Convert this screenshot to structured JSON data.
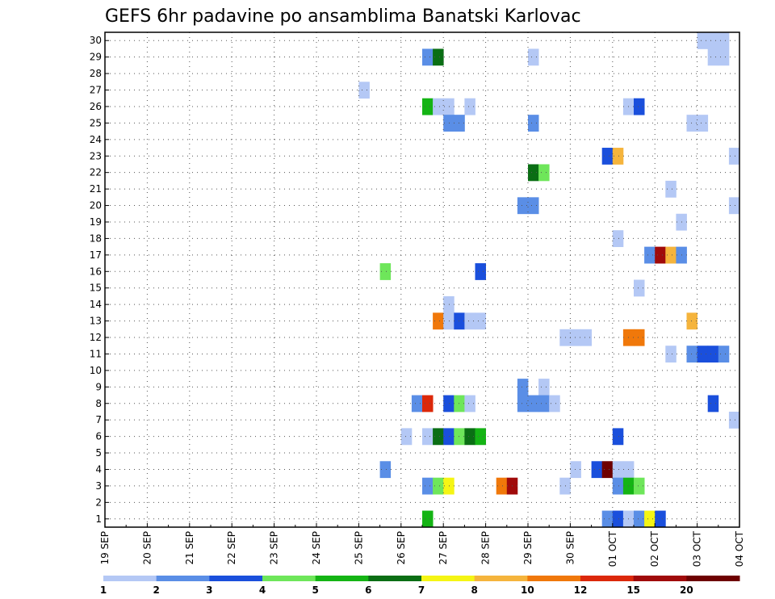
{
  "chart_data": {
    "type": "heatmap",
    "title": "GEFS 6hr padavine po ansamblima Banatski Karlovac",
    "xlabel": "",
    "ylabel": "",
    "x_tick_labels": [
      "19 SEP",
      "20 SEP",
      "21 SEP",
      "22 SEP",
      "23 SEP",
      "24 SEP",
      "25 SEP",
      "26 SEP",
      "27 SEP",
      "28 SEP",
      "29 SEP",
      "30 SEP",
      "01 OCT",
      "02 OCT",
      "03 OCT",
      "04 OCT"
    ],
    "y_tick_labels": [
      "1",
      "2",
      "3",
      "4",
      "5",
      "6",
      "7",
      "8",
      "9",
      "10",
      "11",
      "12",
      "13",
      "14",
      "15",
      "16",
      "17",
      "18",
      "19",
      "20",
      "21",
      "22",
      "23",
      "24",
      "25",
      "26",
      "27",
      "28",
      "29",
      "30"
    ],
    "x_unit": "6-hour step from 19 SEP 00Z (4 steps per day)",
    "xlim": [
      0,
      60
    ],
    "ylim": [
      0.5,
      30.5
    ],
    "grid": true,
    "color_levels": [
      1,
      2,
      3,
      4,
      5,
      6,
      7,
      8,
      10,
      12,
      15,
      20
    ],
    "color_labels": [
      "1",
      "2",
      "3",
      "4",
      "5",
      "6",
      "7",
      "8",
      "10",
      "12",
      "15",
      "20"
    ],
    "colors": [
      "#b4c8f5",
      "#5a8ee6",
      "#1a4fdc",
      "#6ee65a",
      "#14b414",
      "#0a6e14",
      "#f5f514",
      "#f5b43c",
      "#f0780a",
      "#dc280a",
      "#a00a0a",
      "#6e0000"
    ],
    "cells": [
      {
        "member": 30,
        "step": 56,
        "level": 1
      },
      {
        "member": 30,
        "step": 57,
        "level": 1
      },
      {
        "member": 30,
        "step": 58,
        "level": 1
      },
      {
        "member": 29,
        "step": 30,
        "level": 2
      },
      {
        "member": 29,
        "step": 31,
        "level": 6
      },
      {
        "member": 29,
        "step": 40,
        "level": 1
      },
      {
        "member": 29,
        "step": 57,
        "level": 1
      },
      {
        "member": 29,
        "step": 58,
        "level": 1
      },
      {
        "member": 27,
        "step": 24,
        "level": 1
      },
      {
        "member": 26,
        "step": 30,
        "level": 5
      },
      {
        "member": 26,
        "step": 31,
        "level": 1
      },
      {
        "member": 26,
        "step": 32,
        "level": 1
      },
      {
        "member": 26,
        "step": 34,
        "level": 1
      },
      {
        "member": 26,
        "step": 49,
        "level": 1
      },
      {
        "member": 26,
        "step": 50,
        "level": 3
      },
      {
        "member": 25,
        "step": 32,
        "level": 2
      },
      {
        "member": 25,
        "step": 33,
        "level": 2
      },
      {
        "member": 25,
        "step": 40,
        "level": 2
      },
      {
        "member": 25,
        "step": 55,
        "level": 1
      },
      {
        "member": 25,
        "step": 56,
        "level": 1
      },
      {
        "member": 23,
        "step": 47,
        "level": 3
      },
      {
        "member": 23,
        "step": 48,
        "level": 8
      },
      {
        "member": 23,
        "step": 59,
        "level": 1
      },
      {
        "member": 22,
        "step": 40,
        "level": 6
      },
      {
        "member": 22,
        "step": 41,
        "level": 4
      },
      {
        "member": 21,
        "step": 53,
        "level": 1
      },
      {
        "member": 20,
        "step": 39,
        "level": 2
      },
      {
        "member": 20,
        "step": 40,
        "level": 2
      },
      {
        "member": 20,
        "step": 59,
        "level": 1
      },
      {
        "member": 19,
        "step": 54,
        "level": 1
      },
      {
        "member": 18,
        "step": 48,
        "level": 1
      },
      {
        "member": 17,
        "step": 51,
        "level": 2
      },
      {
        "member": 17,
        "step": 52,
        "level": 11
      },
      {
        "member": 17,
        "step": 53,
        "level": 8
      },
      {
        "member": 17,
        "step": 54,
        "level": 2
      },
      {
        "member": 16,
        "step": 26,
        "level": 4
      },
      {
        "member": 16,
        "step": 35,
        "level": 3
      },
      {
        "member": 15,
        "step": 50,
        "level": 1
      },
      {
        "member": 14,
        "step": 32,
        "level": 1
      },
      {
        "member": 13,
        "step": 31,
        "level": 9
      },
      {
        "member": 13,
        "step": 32,
        "level": 1
      },
      {
        "member": 13,
        "step": 33,
        "level": 3
      },
      {
        "member": 13,
        "step": 34,
        "level": 1
      },
      {
        "member": 13,
        "step": 35,
        "level": 1
      },
      {
        "member": 13,
        "step": 55,
        "level": 8
      },
      {
        "member": 12,
        "step": 43,
        "level": 1
      },
      {
        "member": 12,
        "step": 44,
        "level": 1
      },
      {
        "member": 12,
        "step": 45,
        "level": 1
      },
      {
        "member": 12,
        "step": 49,
        "level": 9
      },
      {
        "member": 12,
        "step": 50,
        "level": 9
      },
      {
        "member": 11,
        "step": 53,
        "level": 1
      },
      {
        "member": 11,
        "step": 55,
        "level": 2
      },
      {
        "member": 11,
        "step": 56,
        "level": 3
      },
      {
        "member": 11,
        "step": 57,
        "level": 3
      },
      {
        "member": 11,
        "step": 58,
        "level": 2
      },
      {
        "member": 9,
        "step": 39,
        "level": 2
      },
      {
        "member": 9,
        "step": 41,
        "level": 1
      },
      {
        "member": 8,
        "step": 29,
        "level": 2
      },
      {
        "member": 8,
        "step": 30,
        "level": 10
      },
      {
        "member": 8,
        "step": 32,
        "level": 3
      },
      {
        "member": 8,
        "step": 33,
        "level": 4
      },
      {
        "member": 8,
        "step": 34,
        "level": 1
      },
      {
        "member": 8,
        "step": 39,
        "level": 2
      },
      {
        "member": 8,
        "step": 40,
        "level": 2
      },
      {
        "member": 8,
        "step": 41,
        "level": 2
      },
      {
        "member": 8,
        "step": 42,
        "level": 1
      },
      {
        "member": 8,
        "step": 57,
        "level": 3
      },
      {
        "member": 7,
        "step": 59,
        "level": 1
      },
      {
        "member": 6,
        "step": 28,
        "level": 1
      },
      {
        "member": 6,
        "step": 30,
        "level": 1
      },
      {
        "member": 6,
        "step": 31,
        "level": 6
      },
      {
        "member": 6,
        "step": 32,
        "level": 3
      },
      {
        "member": 6,
        "step": 33,
        "level": 4
      },
      {
        "member": 6,
        "step": 34,
        "level": 6
      },
      {
        "member": 6,
        "step": 35,
        "level": 5
      },
      {
        "member": 6,
        "step": 48,
        "level": 3
      },
      {
        "member": 4,
        "step": 26,
        "level": 2
      },
      {
        "member": 4,
        "step": 44,
        "level": 1
      },
      {
        "member": 4,
        "step": 46,
        "level": 3
      },
      {
        "member": 4,
        "step": 47,
        "level": 12
      },
      {
        "member": 4,
        "step": 48,
        "level": 1
      },
      {
        "member": 4,
        "step": 49,
        "level": 1
      },
      {
        "member": 3,
        "step": 30,
        "level": 2
      },
      {
        "member": 3,
        "step": 31,
        "level": 4
      },
      {
        "member": 3,
        "step": 32,
        "level": 7
      },
      {
        "member": 3,
        "step": 37,
        "level": 9
      },
      {
        "member": 3,
        "step": 38,
        "level": 11
      },
      {
        "member": 3,
        "step": 43,
        "level": 1
      },
      {
        "member": 3,
        "step": 48,
        "level": 2
      },
      {
        "member": 3,
        "step": 49,
        "level": 5
      },
      {
        "member": 3,
        "step": 50,
        "level": 4
      },
      {
        "member": 1,
        "step": 30,
        "level": 5
      },
      {
        "member": 1,
        "step": 47,
        "level": 2
      },
      {
        "member": 1,
        "step": 48,
        "level": 3
      },
      {
        "member": 1,
        "step": 49,
        "level": 1
      },
      {
        "member": 1,
        "step": 50,
        "level": 2
      },
      {
        "member": 1,
        "step": 51,
        "level": 7
      },
      {
        "member": 1,
        "step": 52,
        "level": 3
      }
    ]
  }
}
